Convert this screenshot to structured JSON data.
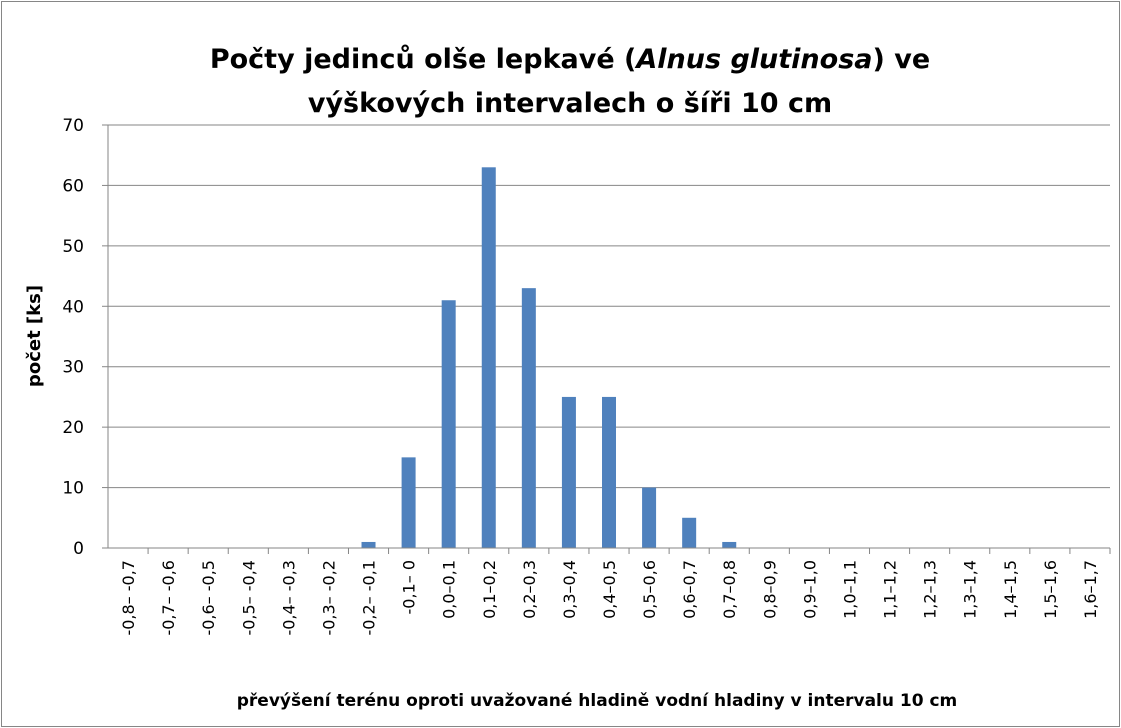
{
  "chart_data": {
    "type": "bar",
    "title": [
      "Počty jedinců olše lepkavé (",
      "Alnus glutinosa",
      ") ve",
      "výškových intervalech o šíři 10 cm"
    ],
    "x_label": "převýšení terénu oproti uvažované hladině vodní hladiny v intervalu 10 cm",
    "y_label": "počet [ks]",
    "categories": [
      "-0,8– -0,7",
      "-0,7– -0,6",
      "-0,6– -0,5",
      "-0,5– -0,4",
      "-0,4– -0,3",
      "-0,3– -0,2",
      "-0,2– -0,1",
      "-0,1– 0",
      "0,0–0,1",
      "0,1–0,2",
      "0,2–0,3",
      "0,3–0,4",
      "0,4–0,5",
      "0,5–0,6",
      "0,6–0,7",
      "0,7–0,8",
      "0,8–0,9",
      "0,9–1,0",
      "1,0–1,1",
      "1,1–1,2",
      "1,2–1,3",
      "1,3–1,4",
      "1,4–1,5",
      "1,5–1,6",
      "1,6–1,7"
    ],
    "values": [
      0,
      0,
      0,
      0,
      0,
      0,
      1,
      15,
      41,
      63,
      43,
      25,
      25,
      10,
      5,
      1,
      0,
      0,
      0,
      0,
      0,
      0,
      0,
      0,
      0
    ],
    "color": "#4f81bd",
    "ylim": [
      0,
      70
    ],
    "yticks": [
      0,
      10,
      20,
      30,
      40,
      50,
      60,
      70
    ],
    "grid": true
  }
}
